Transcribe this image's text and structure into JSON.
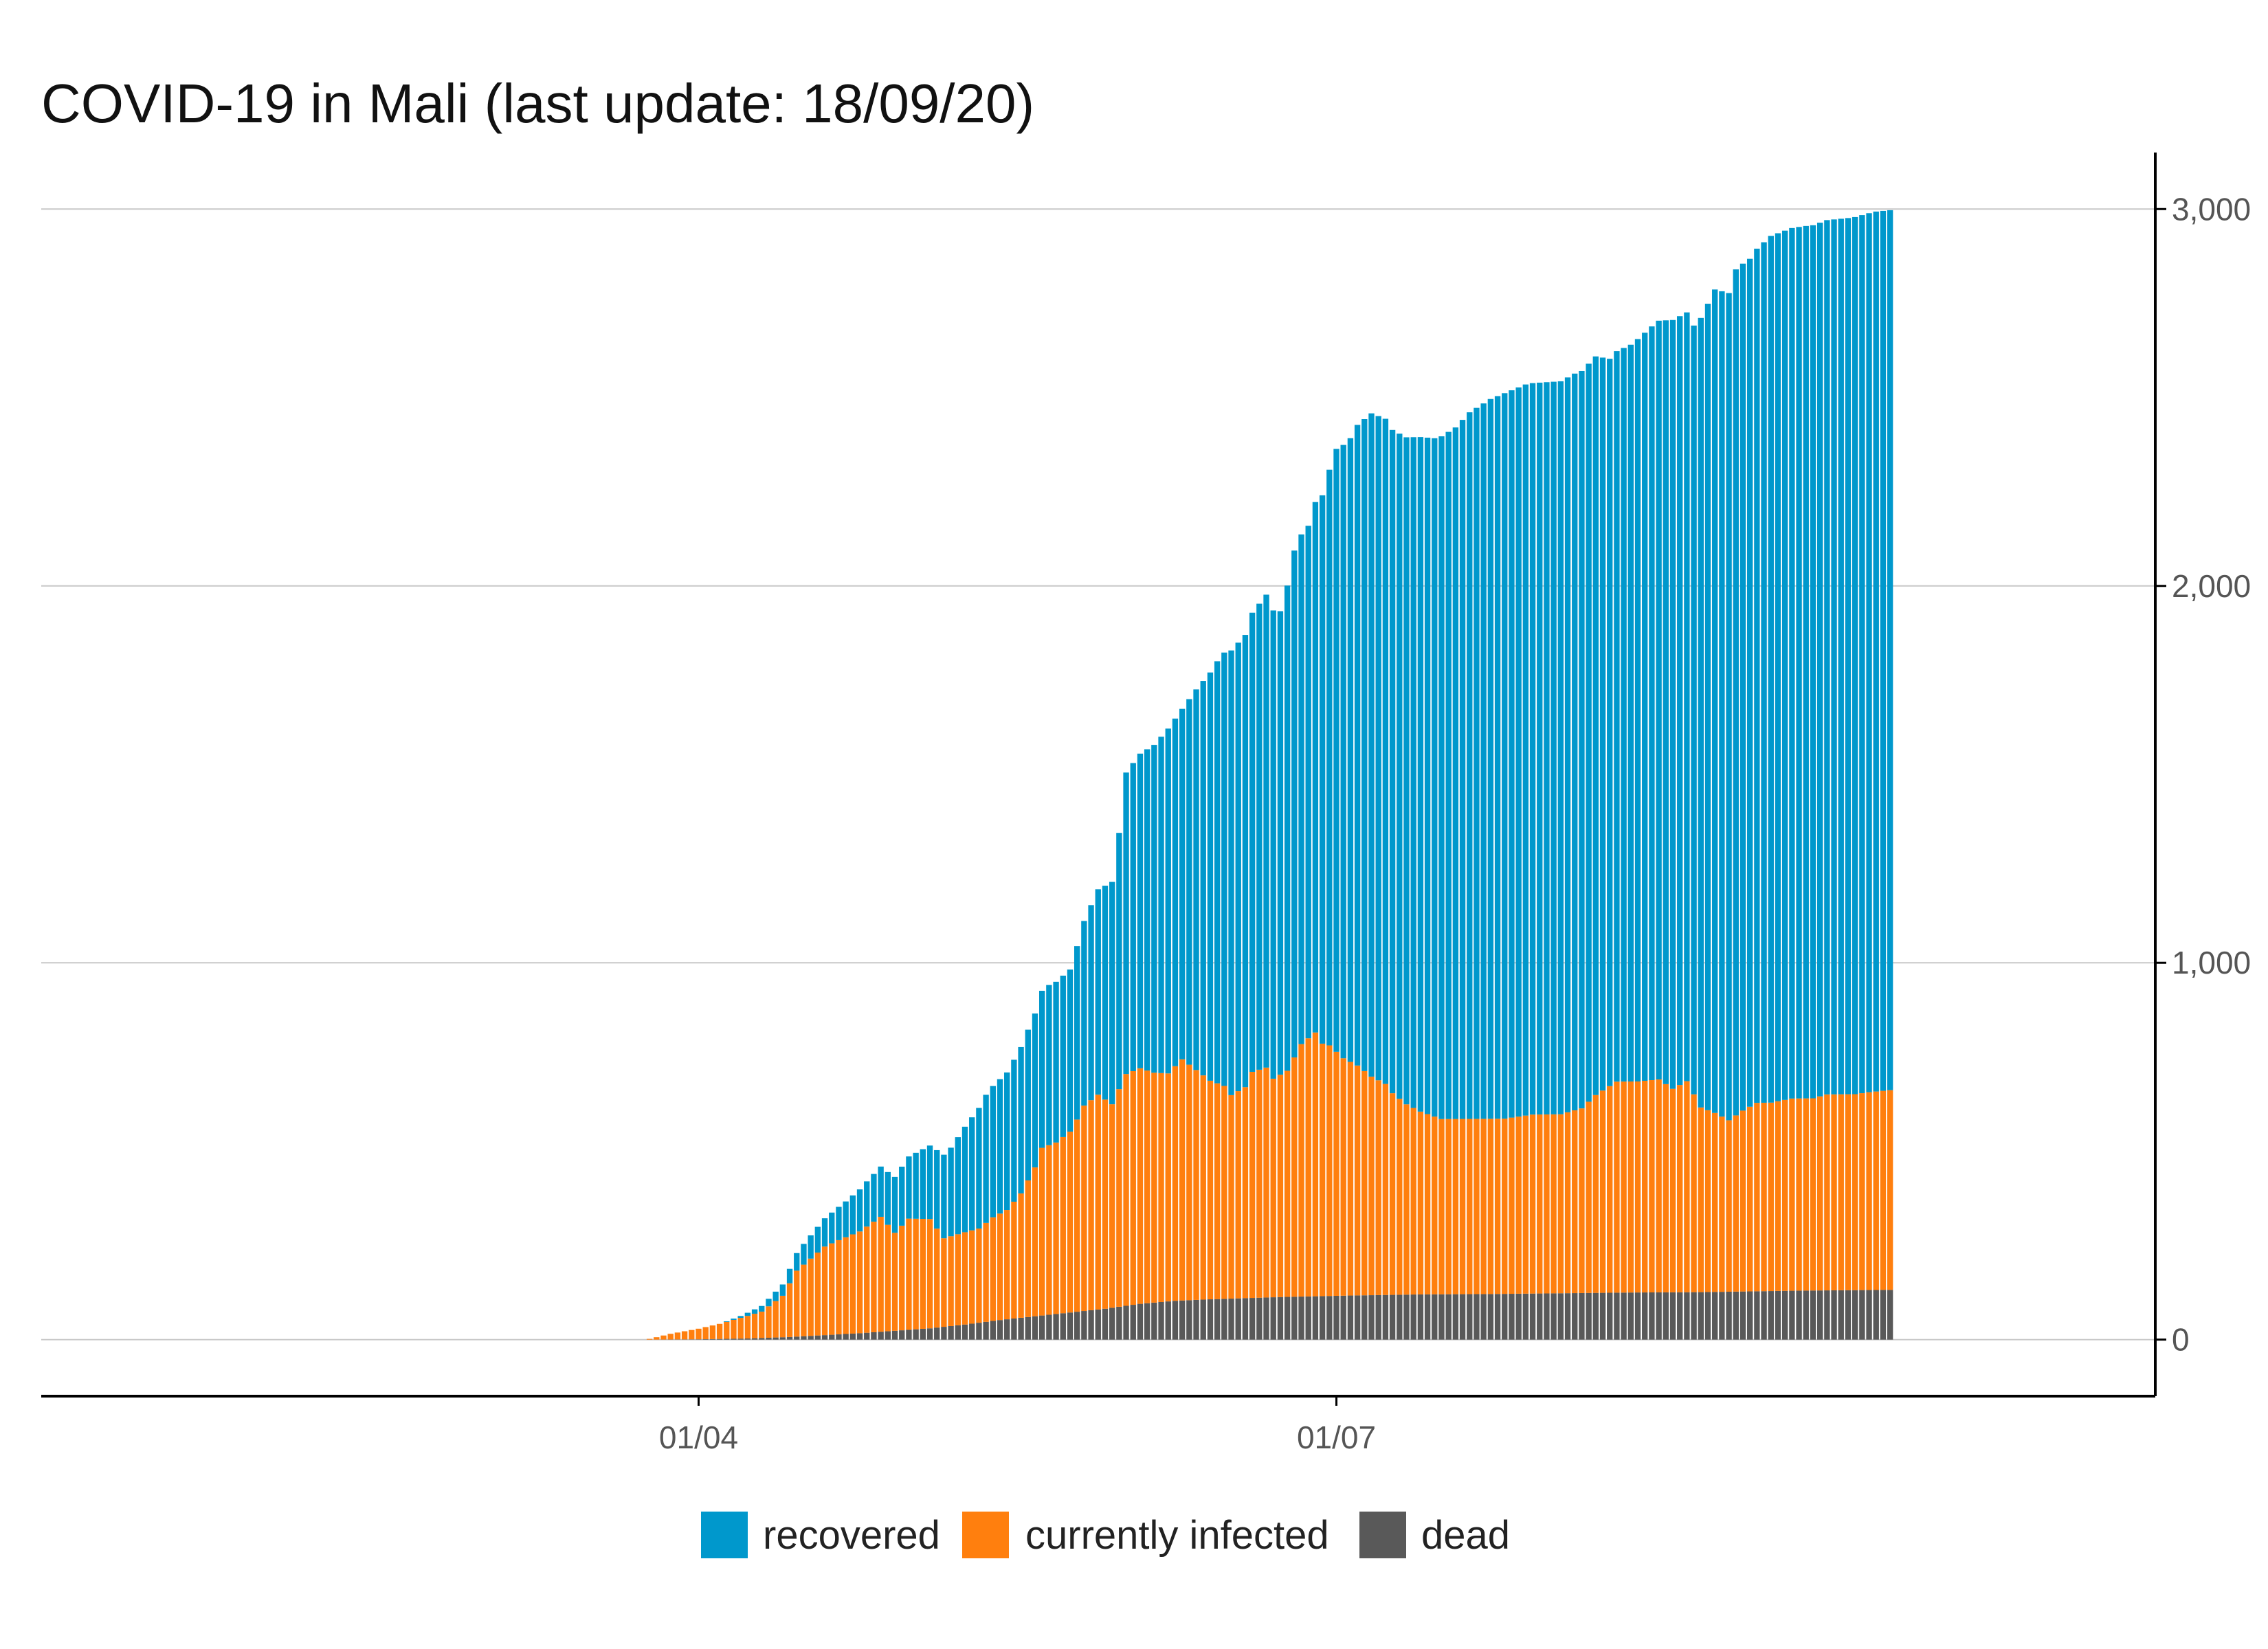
{
  "chart_data": {
    "type": "bar",
    "stacked": true,
    "title": "COVID-19 in Mali (last update: 18/09/20)",
    "xlabel": "",
    "ylabel": "",
    "x_start": "2020-03-01",
    "x_end": "2020-09-18",
    "first_case_date": "2020-03-25",
    "x_ticks": [
      {
        "date": "2020-04-01",
        "label": "01/04"
      },
      {
        "date": "2020-07-01",
        "label": "01/07"
      }
    ],
    "y_ticks": [
      {
        "value": 0,
        "label": "0"
      },
      {
        "value": 1000,
        "label": "1,000"
      },
      {
        "value": 2000,
        "label": "2,000"
      },
      {
        "value": 3000,
        "label": "3,000"
      }
    ],
    "ylim": [
      -150,
      3150
    ],
    "y_axis_side": "right",
    "grid": true,
    "legend_position": "bottom",
    "series": [
      {
        "name": "dead",
        "color": "#595959",
        "anchors": [
          [
            0,
            0
          ],
          [
            7,
            1
          ],
          [
            14,
            3
          ],
          [
            20,
            7
          ],
          [
            30,
            17
          ],
          [
            40,
            30
          ],
          [
            45,
            40
          ],
          [
            50,
            52
          ],
          [
            55,
            62
          ],
          [
            60,
            72
          ],
          [
            65,
            82
          ],
          [
            70,
            95
          ],
          [
            75,
            103
          ],
          [
            80,
            107
          ],
          [
            85,
            110
          ],
          [
            90,
            113
          ],
          [
            100,
            117
          ],
          [
            110,
            120
          ],
          [
            120,
            121
          ],
          [
            130,
            123
          ],
          [
            140,
            125
          ],
          [
            150,
            126
          ],
          [
            157,
            128
          ],
          [
            164,
            130
          ],
          [
            170,
            131
          ],
          [
            177,
            132
          ]
        ]
      },
      {
        "name": "currently infected",
        "color": "#ff7f0e",
        "anchors": [
          [
            0,
            2
          ],
          [
            3,
            15
          ],
          [
            7,
            28
          ],
          [
            10,
            40
          ],
          [
            13,
            55
          ],
          [
            16,
            70
          ],
          [
            19,
            110
          ],
          [
            21,
            175
          ],
          [
            23,
            205
          ],
          [
            25,
            235
          ],
          [
            27,
            250
          ],
          [
            30,
            270
          ],
          [
            33,
            305
          ],
          [
            35,
            260
          ],
          [
            37,
            295
          ],
          [
            40,
            290
          ],
          [
            42,
            235
          ],
          [
            45,
            245
          ],
          [
            47,
            250
          ],
          [
            49,
            275
          ],
          [
            51,
            290
          ],
          [
            53,
            330
          ],
          [
            55,
            395
          ],
          [
            56,
            445
          ],
          [
            58,
            455
          ],
          [
            60,
            480
          ],
          [
            61,
            510
          ],
          [
            62,
            545
          ],
          [
            64,
            570
          ],
          [
            66,
            540
          ],
          [
            68,
            615
          ],
          [
            70,
            625
          ],
          [
            72,
            610
          ],
          [
            74,
            605
          ],
          [
            76,
            640
          ],
          [
            78,
            610
          ],
          [
            80,
            580
          ],
          [
            82,
            565
          ],
          [
            83,
            540
          ],
          [
            85,
            560
          ],
          [
            86,
            600
          ],
          [
            88,
            610
          ],
          [
            89,
            580
          ],
          [
            91,
            600
          ],
          [
            93,
            670
          ],
          [
            95,
            700
          ],
          [
            96,
            670
          ],
          [
            97,
            665
          ],
          [
            99,
            630
          ],
          [
            101,
            610
          ],
          [
            103,
            580
          ],
          [
            105,
            560
          ],
          [
            106,
            535
          ],
          [
            108,
            505
          ],
          [
            110,
            485
          ],
          [
            113,
            465
          ],
          [
            118,
            465
          ],
          [
            122,
            465
          ],
          [
            126,
            475
          ],
          [
            130,
            475
          ],
          [
            133,
            490
          ],
          [
            135,
            525
          ],
          [
            138,
            560
          ],
          [
            141,
            560
          ],
          [
            144,
            565
          ],
          [
            146,
            540
          ],
          [
            148,
            560
          ],
          [
            150,
            490
          ],
          [
            152,
            475
          ],
          [
            154,
            455
          ],
          [
            156,
            480
          ],
          [
            158,
            500
          ],
          [
            160,
            500
          ],
          [
            163,
            510
          ],
          [
            166,
            510
          ],
          [
            168,
            520
          ],
          [
            170,
            520
          ],
          [
            172,
            520
          ],
          [
            174,
            525
          ],
          [
            177,
            530
          ]
        ]
      },
      {
        "name": "recovered",
        "color": "#0098cc",
        "anchors": [
          [
            0,
            0
          ],
          [
            10,
            0
          ],
          [
            13,
            5
          ],
          [
            16,
            15
          ],
          [
            19,
            30
          ],
          [
            22,
            55
          ],
          [
            25,
            75
          ],
          [
            28,
            95
          ],
          [
            31,
            120
          ],
          [
            34,
            140
          ],
          [
            37,
            165
          ],
          [
            40,
            195
          ],
          [
            43,
            235
          ],
          [
            45,
            280
          ],
          [
            46,
            300
          ],
          [
            48,
            340
          ],
          [
            51,
            365
          ],
          [
            54,
            400
          ],
          [
            57,
            425
          ],
          [
            60,
            430
          ],
          [
            62,
            490
          ],
          [
            64,
            545
          ],
          [
            66,
            590
          ],
          [
            67,
            680
          ],
          [
            68,
            800
          ],
          [
            70,
            835
          ],
          [
            72,
            870
          ],
          [
            74,
            915
          ],
          [
            76,
            930
          ],
          [
            78,
            1010
          ],
          [
            81,
            1120
          ],
          [
            83,
            1180
          ],
          [
            85,
            1200
          ],
          [
            88,
            1255
          ],
          [
            90,
            1230
          ],
          [
            92,
            1345
          ],
          [
            94,
            1360
          ],
          [
            96,
            1455
          ],
          [
            98,
            1600
          ],
          [
            100,
            1655
          ],
          [
            101,
            1700
          ],
          [
            103,
            1760
          ],
          [
            105,
            1765
          ],
          [
            106,
            1760
          ],
          [
            108,
            1770
          ],
          [
            110,
            1790
          ],
          [
            112,
            1800
          ],
          [
            115,
            1835
          ],
          [
            117,
            1875
          ],
          [
            120,
            1910
          ],
          [
            122,
            1925
          ],
          [
            125,
            1940
          ],
          [
            130,
            1945
          ],
          [
            132,
            1955
          ],
          [
            135,
            1960
          ],
          [
            137,
            1930
          ],
          [
            140,
            1955
          ],
          [
            143,
            2000
          ],
          [
            146,
            2040
          ],
          [
            149,
            2040
          ],
          [
            150,
            2095
          ],
          [
            152,
            2185
          ],
          [
            154,
            2195
          ],
          [
            155,
            2245
          ],
          [
            157,
            2250
          ],
          [
            160,
            2300
          ],
          [
            163,
            2310
          ],
          [
            165,
            2315
          ],
          [
            168,
            2320
          ],
          [
            171,
            2325
          ],
          [
            173,
            2330
          ],
          [
            175,
            2335
          ],
          [
            177,
            2335
          ]
        ]
      }
    ]
  },
  "legend": {
    "items": [
      {
        "key": "recovered",
        "label": "recovered",
        "color": "#0098cc"
      },
      {
        "key": "infected",
        "label": "currently infected",
        "color": "#ff7f0e"
      },
      {
        "key": "dead",
        "label": "dead",
        "color": "#595959"
      }
    ]
  }
}
